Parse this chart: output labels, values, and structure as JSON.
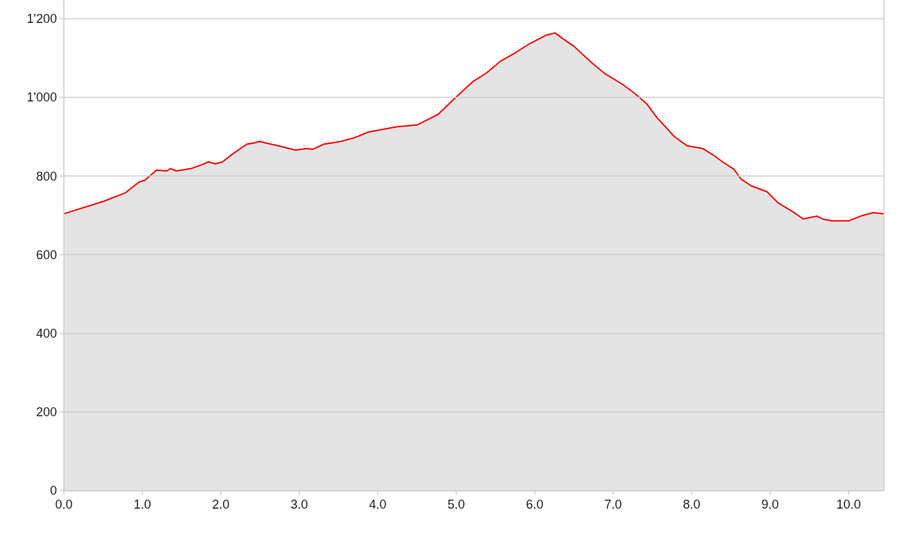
{
  "chart_data": {
    "type": "area",
    "xlim": [
      0,
      10.45
    ],
    "ylim": [
      0,
      1200
    ],
    "xticks": [
      {
        "value": 0,
        "label": "0.0"
      },
      {
        "value": 1,
        "label": "1.0"
      },
      {
        "value": 2,
        "label": "2.0"
      },
      {
        "value": 3,
        "label": "3.0"
      },
      {
        "value": 4,
        "label": "4.0"
      },
      {
        "value": 5,
        "label": "5.0"
      },
      {
        "value": 6,
        "label": "6.0"
      },
      {
        "value": 7,
        "label": "7.0"
      },
      {
        "value": 8,
        "label": "8.0"
      },
      {
        "value": 9,
        "label": "9.0"
      },
      {
        "value": 10,
        "label": "10.0"
      }
    ],
    "yticks": [
      0,
      200,
      400,
      600,
      800,
      {
        "value": 1000,
        "label": "1'000"
      },
      {
        "value": 1200,
        "label": "1'200"
      }
    ],
    "grid": "y",
    "series": [
      {
        "color": "#ff0000",
        "x": [
          0,
          0.51,
          0.78,
          0.96,
          1.03,
          1.18,
          1.31,
          1.36,
          1.43,
          1.62,
          1.76,
          1.84,
          1.93,
          2.02,
          2.15,
          2.33,
          2.42,
          2.49,
          2.64,
          2.73,
          2.95,
          3.09,
          3.17,
          3.31,
          3.53,
          3.71,
          3.88,
          4.24,
          4.5,
          4.64,
          4.77,
          4.95,
          5.21,
          5.39,
          5.57,
          5.74,
          5.92,
          6.14,
          6.26,
          6.36,
          6.5,
          6.72,
          6.89,
          7.12,
          7.27,
          7.43,
          7.56,
          7.78,
          7.94,
          8.14,
          8.27,
          8.4,
          8.54,
          8.63,
          8.76,
          8.96,
          9.1,
          9.29,
          9.42,
          9.6,
          9.68,
          9.78,
          10.0,
          10.18,
          10.31,
          10.45
        ],
        "values": [
          704,
          736,
          757,
          785,
          789,
          815,
          813,
          819,
          813,
          819,
          829,
          836,
          831,
          836,
          856,
          881,
          884,
          888,
          881,
          877,
          866,
          870,
          868,
          881,
          888,
          898,
          912,
          925,
          930,
          944,
          957,
          992,
          1040,
          1063,
          1093,
          1112,
          1135,
          1158,
          1164,
          1149,
          1130,
          1089,
          1061,
          1033,
          1011,
          983,
          948,
          900,
          877,
          870,
          854,
          835,
          817,
          792,
          775,
          760,
          732,
          709,
          691,
          698,
          690,
          686,
          686,
          700,
          707,
          704
        ]
      }
    ]
  }
}
